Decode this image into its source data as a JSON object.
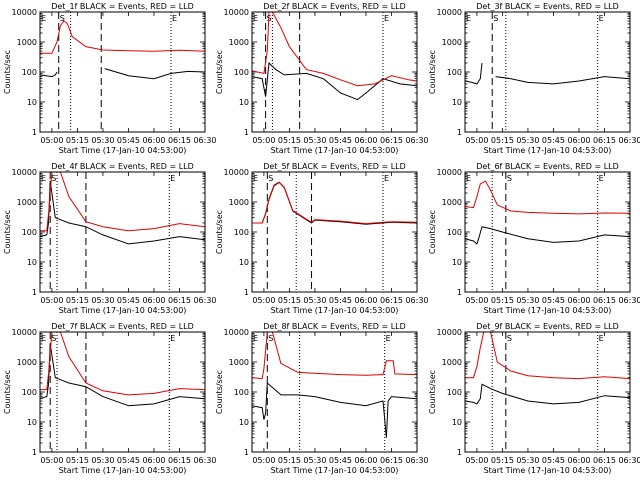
{
  "chart_data": {
    "type": "line",
    "y_scale": "log",
    "ylim": [
      1,
      10000
    ],
    "ylabel": "Counts/sec",
    "xlabel": "Start Time (17-Jan-10 04:53:00)",
    "x_ticks": [
      "05:00",
      "05:15",
      "05:30",
      "05:45",
      "06:00",
      "06:15",
      "06:30"
    ],
    "y_ticks": [
      "1",
      "10",
      "100",
      "1000",
      "10000"
    ],
    "colors": {
      "events": "#000000",
      "lld": "#e00000"
    },
    "marker_labels": [
      "E",
      "S",
      "E"
    ],
    "panels": [
      {
        "title": "Det_1f BLACK = Events, RED = LLD",
        "markers": {
          "dashed": [
            "05:04",
            "05:29"
          ],
          "dotted": [
            "05:11",
            "06:10"
          ]
        },
        "series": [
          {
            "name": "Events",
            "x": [
              "04:53",
              "05:00",
              "05:02",
              "05:03",
              "05:04",
              "05:05",
              "05:07",
              "05:30",
              "05:31",
              "05:45",
              "06:00",
              "06:10",
              "06:20",
              "06:30"
            ],
            "y": [
              80,
              70,
              80,
              100,
              null,
              null,
              null,
              null,
              130,
              75,
              60,
              90,
              105,
              100
            ]
          },
          {
            "name": "LLD",
            "x": [
              "04:53",
              "05:00",
              "05:03",
              "05:05",
              "05:07",
              "05:09",
              "05:12",
              "05:20",
              "05:30",
              "05:45",
              "06:00",
              "06:15",
              "06:30"
            ],
            "y": [
              420,
              420,
              1000,
              3500,
              5000,
              4200,
              1500,
              700,
              540,
              510,
              490,
              530,
              490
            ]
          }
        ]
      },
      {
        "title": "Det_2f BLACK = Events, RED = LLD",
        "markers": {
          "dashed": [
            "05:01",
            "05:21"
          ],
          "dotted": [
            "05:05",
            "06:10"
          ]
        },
        "series": [
          {
            "name": "Events",
            "x": [
              "04:53",
              "04:59",
              "05:00",
              "05:01",
              "05:03",
              "05:07",
              "05:12",
              "05:25",
              "05:35",
              "05:45",
              "05:55",
              "06:00",
              "06:10",
              "06:20",
              "06:30"
            ],
            "y": [
              70,
              60,
              30,
              15,
              200,
              120,
              80,
              90,
              60,
              20,
              12,
              20,
              60,
              40,
              35
            ]
          },
          {
            "name": "LLD",
            "x": [
              "04:53",
              "05:00",
              "05:02",
              "05:03",
              "05:05",
              "05:10",
              "05:15",
              "05:25",
              "05:35",
              "05:45",
              "05:55",
              "06:05",
              "06:15",
              "06:25",
              "06:30"
            ],
            "y": [
              110,
              90,
              500,
              10000,
              10000,
              3000,
              700,
              120,
              90,
              55,
              35,
              40,
              75,
              55,
              50
            ]
          }
        ]
      },
      {
        "title": "Det_3f BLACK = Events, RED = LLD",
        "markers": {
          "dashed": [
            "05:09"
          ],
          "dotted": [
            "05:17",
            "06:11"
          ]
        },
        "series": [
          {
            "name": "Events",
            "x": [
              "04:53",
              "04:57",
              "05:00",
              "05:02",
              "05:03",
              "05:05",
              "05:10",
              "05:11",
              "05:20",
              "05:30",
              "05:45",
              "06:00",
              "06:15",
              "06:30"
            ],
            "y": [
              50,
              45,
              40,
              60,
              200,
              null,
              null,
              70,
              60,
              45,
              40,
              50,
              70,
              60
            ]
          }
        ]
      },
      {
        "title": "Det_4f BLACK = Events, RED = LLD",
        "markers": {
          "dashed": [
            "04:59",
            "05:20"
          ],
          "dotted": [
            "05:03",
            "06:09"
          ]
        },
        "series": [
          {
            "name": "Events",
            "x": [
              "04:53",
              "04:57",
              "04:58",
              "04:59",
              "05:02",
              "05:10",
              "05:20",
              "05:30",
              "05:45",
              "06:00",
              "06:15",
              "06:30"
            ],
            "y": [
              70,
              80,
              200,
              5000,
              300,
              200,
              150,
              80,
              40,
              50,
              70,
              55
            ]
          },
          {
            "name": "LLD",
            "x": [
              "04:53",
              "04:57",
              "04:58",
              "05:00",
              "05:05",
              "05:10",
              "05:20",
              "05:30",
              "05:45",
              "06:00",
              "06:15",
              "06:30"
            ],
            "y": [
              110,
              110,
              400,
              10000,
              10000,
              1500,
              220,
              150,
              110,
              130,
              190,
              150
            ]
          }
        ]
      },
      {
        "title": "Det_5f BLACK = Events, RED = LLD",
        "markers": {
          "dashed": [
            "05:02",
            "05:28"
          ],
          "dotted": [
            "05:19",
            "06:10"
          ]
        },
        "series": [
          {
            "name": "Events",
            "x": [
              "04:53",
              "04:59",
              "05:01",
              "05:03",
              "05:06",
              "05:09",
              "05:12",
              "05:17",
              "05:28",
              "05:30",
              "05:45",
              "06:00",
              "06:15",
              "06:30"
            ],
            "y": [
              200,
              200,
              400,
              1200,
              3500,
              4500,
              3000,
              500,
              200,
              250,
              220,
              180,
              210,
              200
            ]
          },
          {
            "name": "LLD",
            "x": [
              "04:53",
              "04:59",
              "05:01",
              "05:03",
              "05:06",
              "05:09",
              "05:12",
              "05:17",
              "05:28",
              "05:30",
              "05:45",
              "06:00",
              "06:15",
              "06:30"
            ],
            "y": [
              200,
              200,
              420,
              1300,
              3700,
              4600,
              3100,
              520,
              210,
              260,
              230,
              190,
              220,
              210
            ]
          }
        ]
      },
      {
        "title": "Det_6f BLACK = Events, RED = LLD",
        "markers": {
          "dashed": [
            "05:17"
          ],
          "dotted": [
            "05:09",
            "06:11"
          ]
        },
        "series": [
          {
            "name": "Events",
            "x": [
              "04:53",
              "04:58",
              "05:00",
              "05:01",
              "05:03",
              "05:08",
              "05:15",
              "05:30",
              "05:45",
              "06:00",
              "06:15",
              "06:30"
            ],
            "y": [
              60,
              50,
              40,
              60,
              150,
              130,
              100,
              60,
              45,
              50,
              80,
              70
            ]
          },
          {
            "name": "LLD",
            "x": [
              "04:53",
              "04:58",
              "05:00",
              "05:02",
              "05:05",
              "05:08",
              "05:12",
              "05:20",
              "05:30",
              "05:45",
              "06:00",
              "06:15",
              "06:30"
            ],
            "y": [
              700,
              650,
              1500,
              4000,
              5000,
              2500,
              800,
              500,
              450,
              420,
              400,
              430,
              420
            ]
          }
        ]
      },
      {
        "title": "Det_7f BLACK = Events, RED = LLD",
        "markers": {
          "dashed": [
            "04:59",
            "05:20"
          ],
          "dotted": [
            "05:03",
            "06:09"
          ]
        },
        "series": [
          {
            "name": "Events",
            "x": [
              "04:53",
              "04:57",
              "04:58",
              "04:59",
              "05:02",
              "05:10",
              "05:20",
              "05:30",
              "05:45",
              "06:00",
              "06:15",
              "06:30"
            ],
            "y": [
              60,
              70,
              180,
              4000,
              300,
              200,
              150,
              70,
              35,
              40,
              70,
              60
            ]
          },
          {
            "name": "LLD",
            "x": [
              "04:53",
              "04:57",
              "04:58",
              "05:00",
              "05:05",
              "05:10",
              "05:20",
              "05:30",
              "05:45",
              "06:00",
              "06:15",
              "06:30"
            ],
            "y": [
              120,
              120,
              400,
              10000,
              10000,
              1500,
              200,
              110,
              80,
              90,
              130,
              120
            ]
          }
        ]
      },
      {
        "title": "Det_8f BLACK = Events, RED = LLD",
        "markers": {
          "dashed": [
            "05:02"
          ],
          "dotted": [
            "05:21",
            "06:11"
          ]
        },
        "series": [
          {
            "name": "Events",
            "x": [
              "04:53",
              "04:59",
              "05:00",
              "05:01",
              "05:02",
              "05:10",
              "05:20",
              "05:30",
              "05:45",
              "06:00",
              "06:10",
              "06:12",
              "06:13",
              "06:15",
              "06:30"
            ],
            "y": [
              35,
              30,
              12,
              20,
              200,
              80,
              80,
              70,
              45,
              35,
              50,
              3,
              50,
              70,
              60
            ]
          },
          {
            "name": "LLD",
            "x": [
              "04:53",
              "04:59",
              "05:00",
              "05:02",
              "05:05",
              "05:10",
              "05:20",
              "05:30",
              "05:45",
              "06:00",
              "06:10",
              "06:12",
              "06:16",
              "06:17",
              "06:30"
            ],
            "y": [
              300,
              280,
              600,
              10000,
              10000,
              900,
              450,
              420,
              380,
              360,
              380,
              1100,
              1100,
              400,
              380
            ]
          }
        ]
      },
      {
        "title": "Det_9f BLACK = Events, RED = LLD",
        "markers": {
          "dashed": [
            "05:17"
          ],
          "dotted": [
            "05:09",
            "06:11"
          ]
        },
        "series": [
          {
            "name": "Events",
            "x": [
              "04:53",
              "04:58",
              "05:00",
              "05:02",
              "05:03",
              "05:08",
              "05:15",
              "05:30",
              "05:45",
              "06:00",
              "06:15",
              "06:30"
            ],
            "y": [
              50,
              45,
              40,
              60,
              180,
              130,
              90,
              50,
              40,
              45,
              75,
              65
            ]
          },
          {
            "name": "LLD",
            "x": [
              "04:53",
              "04:58",
              "05:00",
              "05:02",
              "05:04",
              "05:08",
              "05:12",
              "05:20",
              "05:30",
              "05:45",
              "06:00",
              "06:15",
              "06:30"
            ],
            "y": [
              300,
              300,
              700,
              3000,
              10000,
              10000,
              1000,
              500,
              350,
              300,
              280,
              320,
              280
            ]
          }
        ]
      }
    ]
  }
}
